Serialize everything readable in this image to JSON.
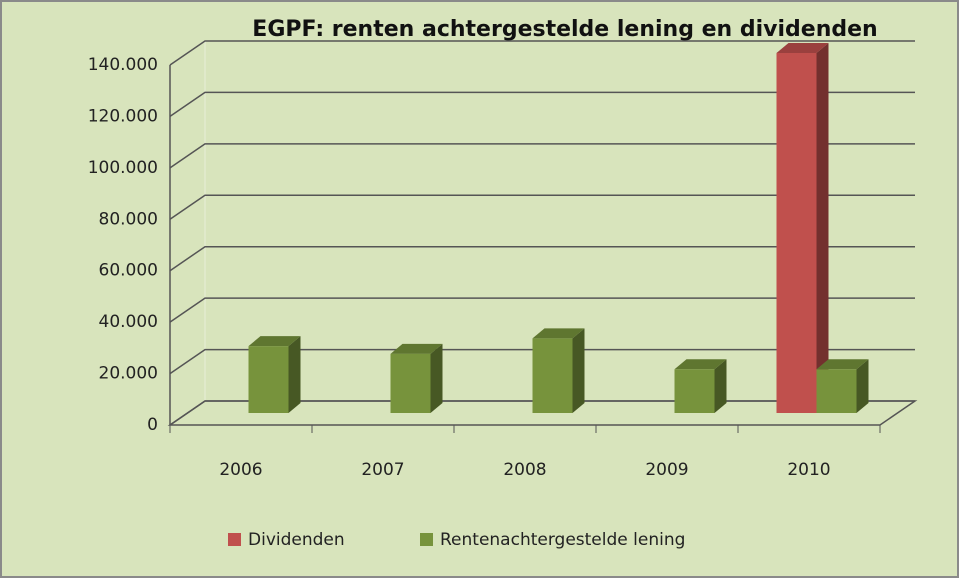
{
  "chart_data": {
    "type": "bar3d",
    "title": "EGPF: renten achtergestelde lening en dividenden",
    "categories": [
      "2006",
      "2007",
      "2008",
      "2009",
      "2010"
    ],
    "series": [
      {
        "name": "Dividenden",
        "color": "#c0504d",
        "values": [
          null,
          null,
          null,
          null,
          140000
        ]
      },
      {
        "name": "Rentenachtergestelde lening",
        "color": "#77933c",
        "values": [
          26000,
          23000,
          29000,
          17000,
          17000
        ]
      }
    ],
    "ylim": [
      0,
      140000
    ],
    "yticks": [
      0,
      {
        "value": 20000,
        "label": "20.000"
      },
      {
        "value": 40000,
        "label": "40.000"
      },
      {
        "value": 60000,
        "label": "60.000"
      },
      {
        "value": 80000,
        "label": "80.000"
      },
      {
        "value": 100000,
        "label": "100.000"
      },
      {
        "value": 120000,
        "label": "120.000"
      },
      {
        "value": 140000,
        "label": "140.000"
      }
    ],
    "grid": true,
    "legend": "bottom"
  }
}
